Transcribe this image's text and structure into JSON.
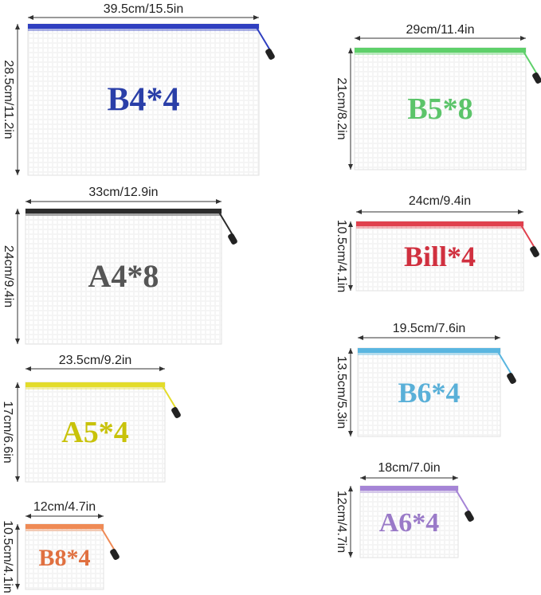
{
  "items": [
    {
      "label": "B4*4",
      "width": "39.5cm/15.5in",
      "height": "28.5cm/11.2in"
    },
    {
      "label": "A4*8",
      "width": "33cm/12.9in",
      "height": "24cm/9.4in"
    },
    {
      "label": "A5*4",
      "width": "23.5cm/9.2in",
      "height": "17cm/6.6in"
    },
    {
      "label": "B8*4",
      "width": "12cm/4.7in",
      "height": "10.5cm/4.1in"
    },
    {
      "label": "B5*8",
      "width": "29cm/11.4in",
      "height": "21cm/8.2in"
    },
    {
      "label": "Bill*4",
      "width": "24cm/9.4in",
      "height": "10.5cm/4.1in"
    },
    {
      "label": "B6*4",
      "width": "19.5cm/7.6in",
      "height": "13.5cm/5.3in"
    },
    {
      "label": "A6*4",
      "width": "18cm/7.0in",
      "height": "12cm/4.7in"
    }
  ]
}
